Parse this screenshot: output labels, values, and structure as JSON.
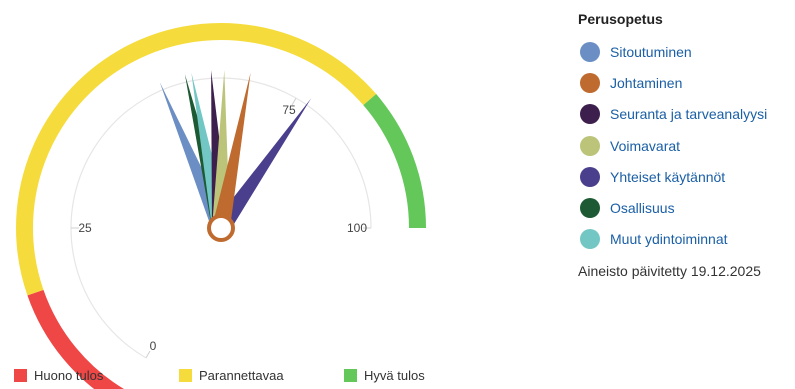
{
  "chart_data": {
    "type": "gauge",
    "title": "Perusopetus",
    "range": [
      0,
      100
    ],
    "tick_labels": [
      "0",
      "25",
      "75",
      "100"
    ],
    "bands": [
      {
        "name": "Huono tulos",
        "from": 0,
        "to": 17,
        "color": "#ef4646"
      },
      {
        "name": "Parannettavaa",
        "from": 17,
        "to": 83,
        "color": "#f5dc3c"
      },
      {
        "name": "Hyvä tulos",
        "from": 83,
        "to": 100,
        "color": "#63c75a"
      }
    ],
    "series": [
      {
        "name": "Sitoutuminen",
        "value": 53,
        "color": "#6b8fc4"
      },
      {
        "name": "Johtaminen",
        "value": 67,
        "color": "#bf6a2e"
      },
      {
        "name": "Seuranta ja tarveanalyysi",
        "value": 61,
        "color": "#3d1f4e"
      },
      {
        "name": "Voimavarat",
        "value": 63,
        "color": "#bcc47a"
      },
      {
        "name": "Yhteiset käytännöt",
        "value": 77,
        "color": "#4a3f8c"
      },
      {
        "name": "Osallisuus",
        "value": 57,
        "color": "#1d5a33"
      },
      {
        "name": "Muut ydintoiminnat",
        "value": 58,
        "color": "#72c7c4"
      }
    ]
  },
  "updated_text": "Aineisto päivitetty 19.12.2025"
}
